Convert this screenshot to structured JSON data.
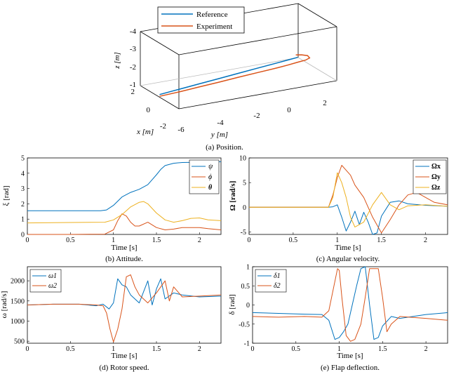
{
  "colors": {
    "blue": "#0072BD",
    "orange": "#D95319",
    "yellow": "#EDB120"
  },
  "chart_data": [
    {
      "id": "position",
      "type": "line3d",
      "caption": "(a) Position.",
      "legend": [
        "Reference",
        "Experiment"
      ],
      "xlabel": "x [m]",
      "ylabel": "y [m]",
      "zlabel": "z [m]",
      "x_ticks": [
        "2",
        "0",
        "-2"
      ],
      "y_ticks": [
        "-6",
        "-4",
        "-2",
        "0",
        "2"
      ],
      "z_ticks": [
        "-4",
        "-3",
        "-2",
        "-1"
      ],
      "xlim": [
        -2,
        2
      ],
      "ylim": [
        -6,
        2
      ],
      "zlim": [
        -4,
        -1
      ],
      "series": [
        {
          "name": "Reference",
          "x": [
            0,
            0,
            0,
            0,
            0,
            0,
            0,
            0,
            0
          ],
          "y": [
            -6,
            -5,
            -4,
            -3,
            -2,
            -1,
            0,
            0.5,
            1.0
          ],
          "z": [
            -1.15,
            -1.25,
            -1.35,
            -1.45,
            -1.55,
            -1.65,
            -1.75,
            -1.8,
            -1.85
          ]
        },
        {
          "name": "Experiment",
          "x": [
            0,
            0,
            0,
            0,
            0,
            0,
            0,
            0,
            0,
            0,
            0,
            0,
            0,
            0
          ],
          "y": [
            -6,
            -5,
            -4,
            -3,
            -2,
            -1,
            0,
            0.5,
            1.0,
            1.4,
            1.6,
            1.5,
            1.2,
            0.9
          ],
          "z": [
            -1.05,
            -1.1,
            -1.18,
            -1.25,
            -1.33,
            -1.4,
            -1.47,
            -1.52,
            -1.58,
            -1.62,
            -1.7,
            -1.85,
            -1.95,
            -2.0
          ]
        }
      ]
    },
    {
      "id": "attitude",
      "type": "line",
      "caption": "(b) Attitude.",
      "xlabel": "Time [s]",
      "ylabel": "ξ [rad]",
      "xlim": [
        0,
        2.25
      ],
      "ylim": [
        0,
        5
      ],
      "xticks": [
        "0",
        "0.5",
        "1",
        "1.5",
        "2"
      ],
      "yticks": [
        "0",
        "1",
        "2",
        "3",
        "4",
        "5"
      ],
      "legend_labels": [
        "ψ",
        "ϕ",
        "θ"
      ],
      "series": [
        {
          "name": "ψ",
          "color": "blue",
          "x": [
            0,
            0.5,
            0.85,
            0.92,
            1.0,
            1.1,
            1.2,
            1.3,
            1.4,
            1.5,
            1.55,
            1.6,
            1.7,
            1.8,
            2.0,
            2.25
          ],
          "y": [
            1.55,
            1.55,
            1.55,
            1.6,
            1.9,
            2.45,
            2.75,
            2.95,
            3.25,
            3.9,
            4.25,
            4.5,
            4.65,
            4.7,
            4.72,
            4.75
          ]
        },
        {
          "name": "ϕ",
          "color": "orange",
          "x": [
            0,
            0.5,
            0.9,
            1.0,
            1.05,
            1.1,
            1.15,
            1.2,
            1.25,
            1.3,
            1.4,
            1.5,
            1.6,
            1.7,
            1.8,
            2.0,
            2.1,
            2.25
          ],
          "y": [
            0.0,
            0.0,
            0.02,
            0.3,
            0.9,
            1.35,
            1.2,
            0.8,
            0.55,
            0.55,
            0.8,
            0.45,
            0.3,
            0.35,
            0.45,
            0.45,
            0.38,
            0.3
          ]
        },
        {
          "name": "θ",
          "color": "yellow",
          "x": [
            0,
            0.5,
            0.9,
            1.0,
            1.1,
            1.2,
            1.3,
            1.35,
            1.4,
            1.5,
            1.6,
            1.7,
            1.8,
            1.9,
            2.0,
            2.1,
            2.25
          ],
          "y": [
            0.75,
            0.78,
            0.8,
            0.95,
            1.3,
            1.8,
            2.1,
            2.15,
            2.0,
            1.4,
            0.95,
            0.8,
            0.9,
            1.05,
            1.08,
            0.95,
            0.9
          ]
        }
      ]
    },
    {
      "id": "angular_velocity",
      "type": "line",
      "caption": "(c) Angular velocity.",
      "xlabel": "Time [s]",
      "ylabel": "Ω [rad/s]",
      "xlim": [
        0,
        2.25
      ],
      "ylim": [
        -5.5,
        10
      ],
      "xticks": [
        "0",
        "0.5",
        "1",
        "1.5",
        "2"
      ],
      "yticks": [
        "-5",
        "0",
        "5",
        "10"
      ],
      "legend_labels": [
        "Ωx",
        "Ωy",
        "Ωz"
      ],
      "series": [
        {
          "name": "Ωx",
          "color": "blue",
          "x": [
            0,
            0.5,
            0.9,
            0.95,
            1.0,
            1.05,
            1.1,
            1.15,
            1.2,
            1.25,
            1.3,
            1.35,
            1.4,
            1.45,
            1.5,
            1.6,
            1.7,
            1.8,
            2.0,
            2.25
          ],
          "y": [
            0,
            0,
            0,
            0.1,
            0.5,
            -2.0,
            -4.8,
            -3.0,
            -0.8,
            -3.5,
            -1.0,
            -3.0,
            -5.5,
            -5.2,
            -1.8,
            1.0,
            1.3,
            0.7,
            0.4,
            0.2
          ]
        },
        {
          "name": "Ωy",
          "color": "orange",
          "x": [
            0,
            0.5,
            0.9,
            0.95,
            1.0,
            1.05,
            1.1,
            1.15,
            1.2,
            1.3,
            1.4,
            1.5,
            1.6,
            1.7,
            1.8,
            1.9,
            2.0,
            2.1,
            2.25
          ],
          "y": [
            0,
            0,
            0,
            2.5,
            6.0,
            8.5,
            7.5,
            6.5,
            4.5,
            2.0,
            -2.0,
            -5.2,
            -2.5,
            0.5,
            2.5,
            3.0,
            2.0,
            1.0,
            0.5
          ]
        },
        {
          "name": "Ωz",
          "color": "yellow",
          "x": [
            0,
            0.5,
            0.9,
            0.95,
            1.0,
            1.05,
            1.1,
            1.15,
            1.2,
            1.3,
            1.4,
            1.5,
            1.6,
            1.7,
            1.8,
            2.0,
            2.25
          ],
          "y": [
            0,
            0,
            0,
            2.0,
            7.0,
            5.0,
            2.0,
            -2.0,
            -4.0,
            -3.0,
            0.5,
            3.0,
            0.5,
            -0.5,
            0.3,
            0.5,
            0.2
          ]
        }
      ]
    },
    {
      "id": "rotor_speed",
      "type": "line",
      "caption": "(d) Rotor speed.",
      "xlabel": "Time [s]",
      "ylabel": "ω [rad/s]",
      "xlim": [
        0,
        2.25
      ],
      "ylim": [
        450,
        2350
      ],
      "xticks": [
        "0",
        "0.5",
        "1",
        "1.5",
        "2"
      ],
      "yticks": [
        "500",
        "1000",
        "1500",
        "2000"
      ],
      "legend_labels": [
        "ω1",
        "ω2"
      ],
      "series": [
        {
          "name": "ω1",
          "color": "blue",
          "x": [
            0,
            0.3,
            0.6,
            0.8,
            0.88,
            0.95,
            1.0,
            1.05,
            1.1,
            1.15,
            1.2,
            1.3,
            1.4,
            1.45,
            1.5,
            1.55,
            1.6,
            1.7,
            1.8,
            2.0,
            2.25
          ],
          "y": [
            1400,
            1420,
            1420,
            1380,
            1420,
            1300,
            1450,
            2050,
            1900,
            1850,
            1650,
            1450,
            2000,
            1400,
            1800,
            2050,
            1550,
            1700,
            1650,
            1600,
            1620
          ]
        },
        {
          "name": "ω2",
          "color": "orange",
          "x": [
            0,
            0.3,
            0.6,
            0.8,
            0.88,
            0.92,
            0.96,
            1.0,
            1.05,
            1.1,
            1.15,
            1.2,
            1.25,
            1.3,
            1.4,
            1.5,
            1.6,
            1.65,
            1.7,
            1.8,
            2.0,
            2.25
          ],
          "y": [
            1400,
            1420,
            1420,
            1400,
            1380,
            1200,
            800,
            480,
            800,
            1300,
            2100,
            2150,
            1850,
            1650,
            1450,
            1700,
            2000,
            1500,
            1850,
            1600,
            1620,
            1650
          ]
        }
      ]
    },
    {
      "id": "flap_deflection",
      "type": "line",
      "caption": "(e) Flap deflection.",
      "xlabel": "Time [s]",
      "ylabel": "δ [rad]",
      "xlim": [
        0,
        2.25
      ],
      "ylim": [
        -1,
        1
      ],
      "xticks": [
        "0",
        "0.5",
        "1",
        "1.5",
        "2"
      ],
      "yticks": [
        "-1",
        "-0.5",
        "0",
        "0.5",
        "1"
      ],
      "legend_labels": [
        "δ1",
        "δ2"
      ],
      "series": [
        {
          "name": "δ1",
          "color": "blue",
          "x": [
            0,
            0.3,
            0.6,
            0.8,
            0.88,
            0.95,
            1.0,
            1.05,
            1.1,
            1.15,
            1.2,
            1.25,
            1.3,
            1.35,
            1.4,
            1.45,
            1.5,
            1.6,
            1.7,
            2.0,
            2.25
          ],
          "y": [
            -0.2,
            -0.22,
            -0.24,
            -0.25,
            -0.4,
            -0.9,
            -0.85,
            -0.7,
            -0.5,
            0.0,
            0.5,
            0.95,
            1.0,
            0.0,
            -0.9,
            -0.85,
            -0.55,
            -0.3,
            -0.35,
            -0.25,
            -0.2
          ]
        },
        {
          "name": "δ2",
          "color": "orange",
          "x": [
            0,
            0.3,
            0.6,
            0.8,
            0.88,
            0.93,
            0.98,
            1.0,
            1.03,
            1.08,
            1.13,
            1.18,
            1.25,
            1.3,
            1.35,
            1.4,
            1.45,
            1.5,
            1.55,
            1.6,
            1.7,
            2.0,
            2.25
          ],
          "y": [
            -0.3,
            -0.32,
            -0.3,
            -0.32,
            -0.15,
            0.4,
            0.95,
            0.9,
            0.2,
            -0.8,
            -0.95,
            -0.9,
            -0.5,
            0.2,
            0.95,
            0.95,
            0.95,
            0.2,
            -0.7,
            -0.5,
            -0.3,
            -0.35,
            -0.4
          ]
        }
      ]
    }
  ]
}
